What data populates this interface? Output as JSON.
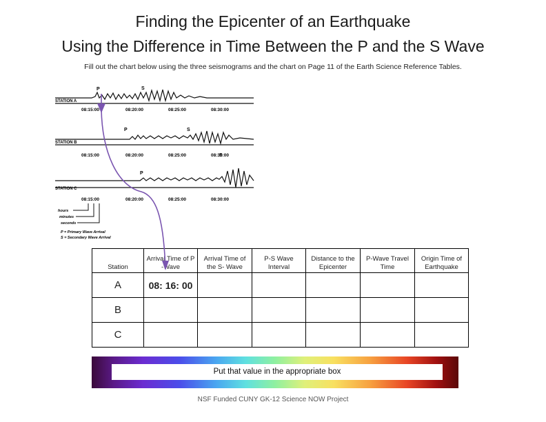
{
  "title_line1": "Finding the Epicenter of an Earthquake",
  "title_line2": "Using the Difference in Time Between the P and the S Wave",
  "instructions": "Fill out the chart below using the three seismograms and the chart on Page 11 of the Earth Science Reference Tables.",
  "seismogram": {
    "stations": [
      "STATION A",
      "STATION B",
      "STATION C"
    ],
    "time_ticks": [
      "08:15:00",
      "08:20:00",
      "08:25:00",
      "08:30:00"
    ],
    "wave_labels": {
      "p": "P",
      "s": "S"
    },
    "legend": {
      "hours": "hours",
      "minutes": "minutes",
      "seconds": "seconds",
      "p_line": "P = Primary Wave Arrival",
      "s_line": "S = Secondary Wave Arrival"
    }
  },
  "table": {
    "headers": {
      "station": "Station",
      "p_arrival": "Arrival Time of P -Wave",
      "s_arrival": "Arrival Time of the S- Wave",
      "ps_interval": "P-S Wave Interval",
      "distance": "Distance to the Epicenter",
      "p_travel": "P-Wave Travel Time",
      "origin": "Origin Time of Earthquake"
    },
    "rows": [
      {
        "station": "A",
        "p_arrival": "08: 16: 00"
      },
      {
        "station": "B",
        "p_arrival": ""
      },
      {
        "station": "C",
        "p_arrival": ""
      }
    ]
  },
  "banner_text": "Put that value in the appropriate box",
  "footer": "NSF Funded CUNY GK-12 Science NOW Project",
  "colors": {
    "arrow": "#7a55b0",
    "answer": "#6a3d99"
  }
}
